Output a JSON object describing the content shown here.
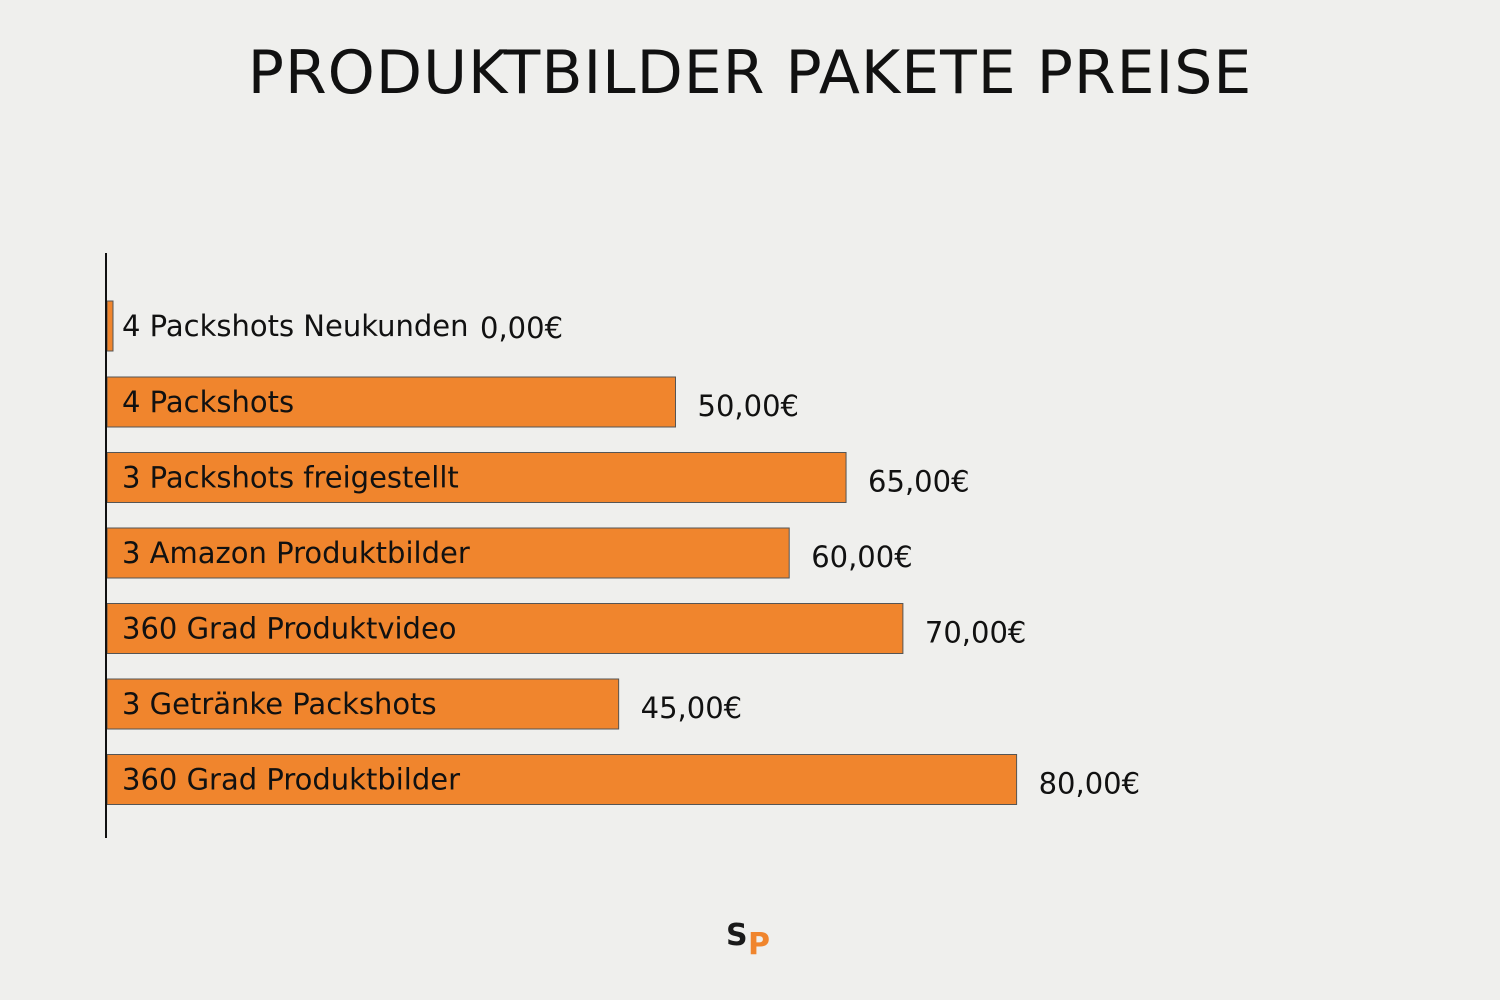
{
  "chart_data": {
    "type": "bar",
    "orientation": "horizontal",
    "title": "PRODUKTBILDER PAKETE PREISE",
    "categories": [
      "4 Packshots Neukunden",
      "4 Packshots",
      "3 Packshots freigestellt",
      "3 Amazon Produktbilder",
      "360 Grad Produktvideo",
      "3 Getränke Packshots",
      "360 Grad Produktbilder"
    ],
    "values": [
      0,
      50,
      65,
      60,
      70,
      45,
      80
    ],
    "value_labels": [
      "0,00€",
      "50,00€",
      "65,00€",
      "60,00€",
      "70,00€",
      "45,00€",
      "80,00€"
    ],
    "unit": "€",
    "grid": false,
    "legend": "none",
    "bar_color": "#f0852d",
    "bar_edge_color": "#555555"
  },
  "logo": {
    "s": "S",
    "p": "P",
    "s_color": "#1a1a1a",
    "p_color": "#f0852d"
  }
}
